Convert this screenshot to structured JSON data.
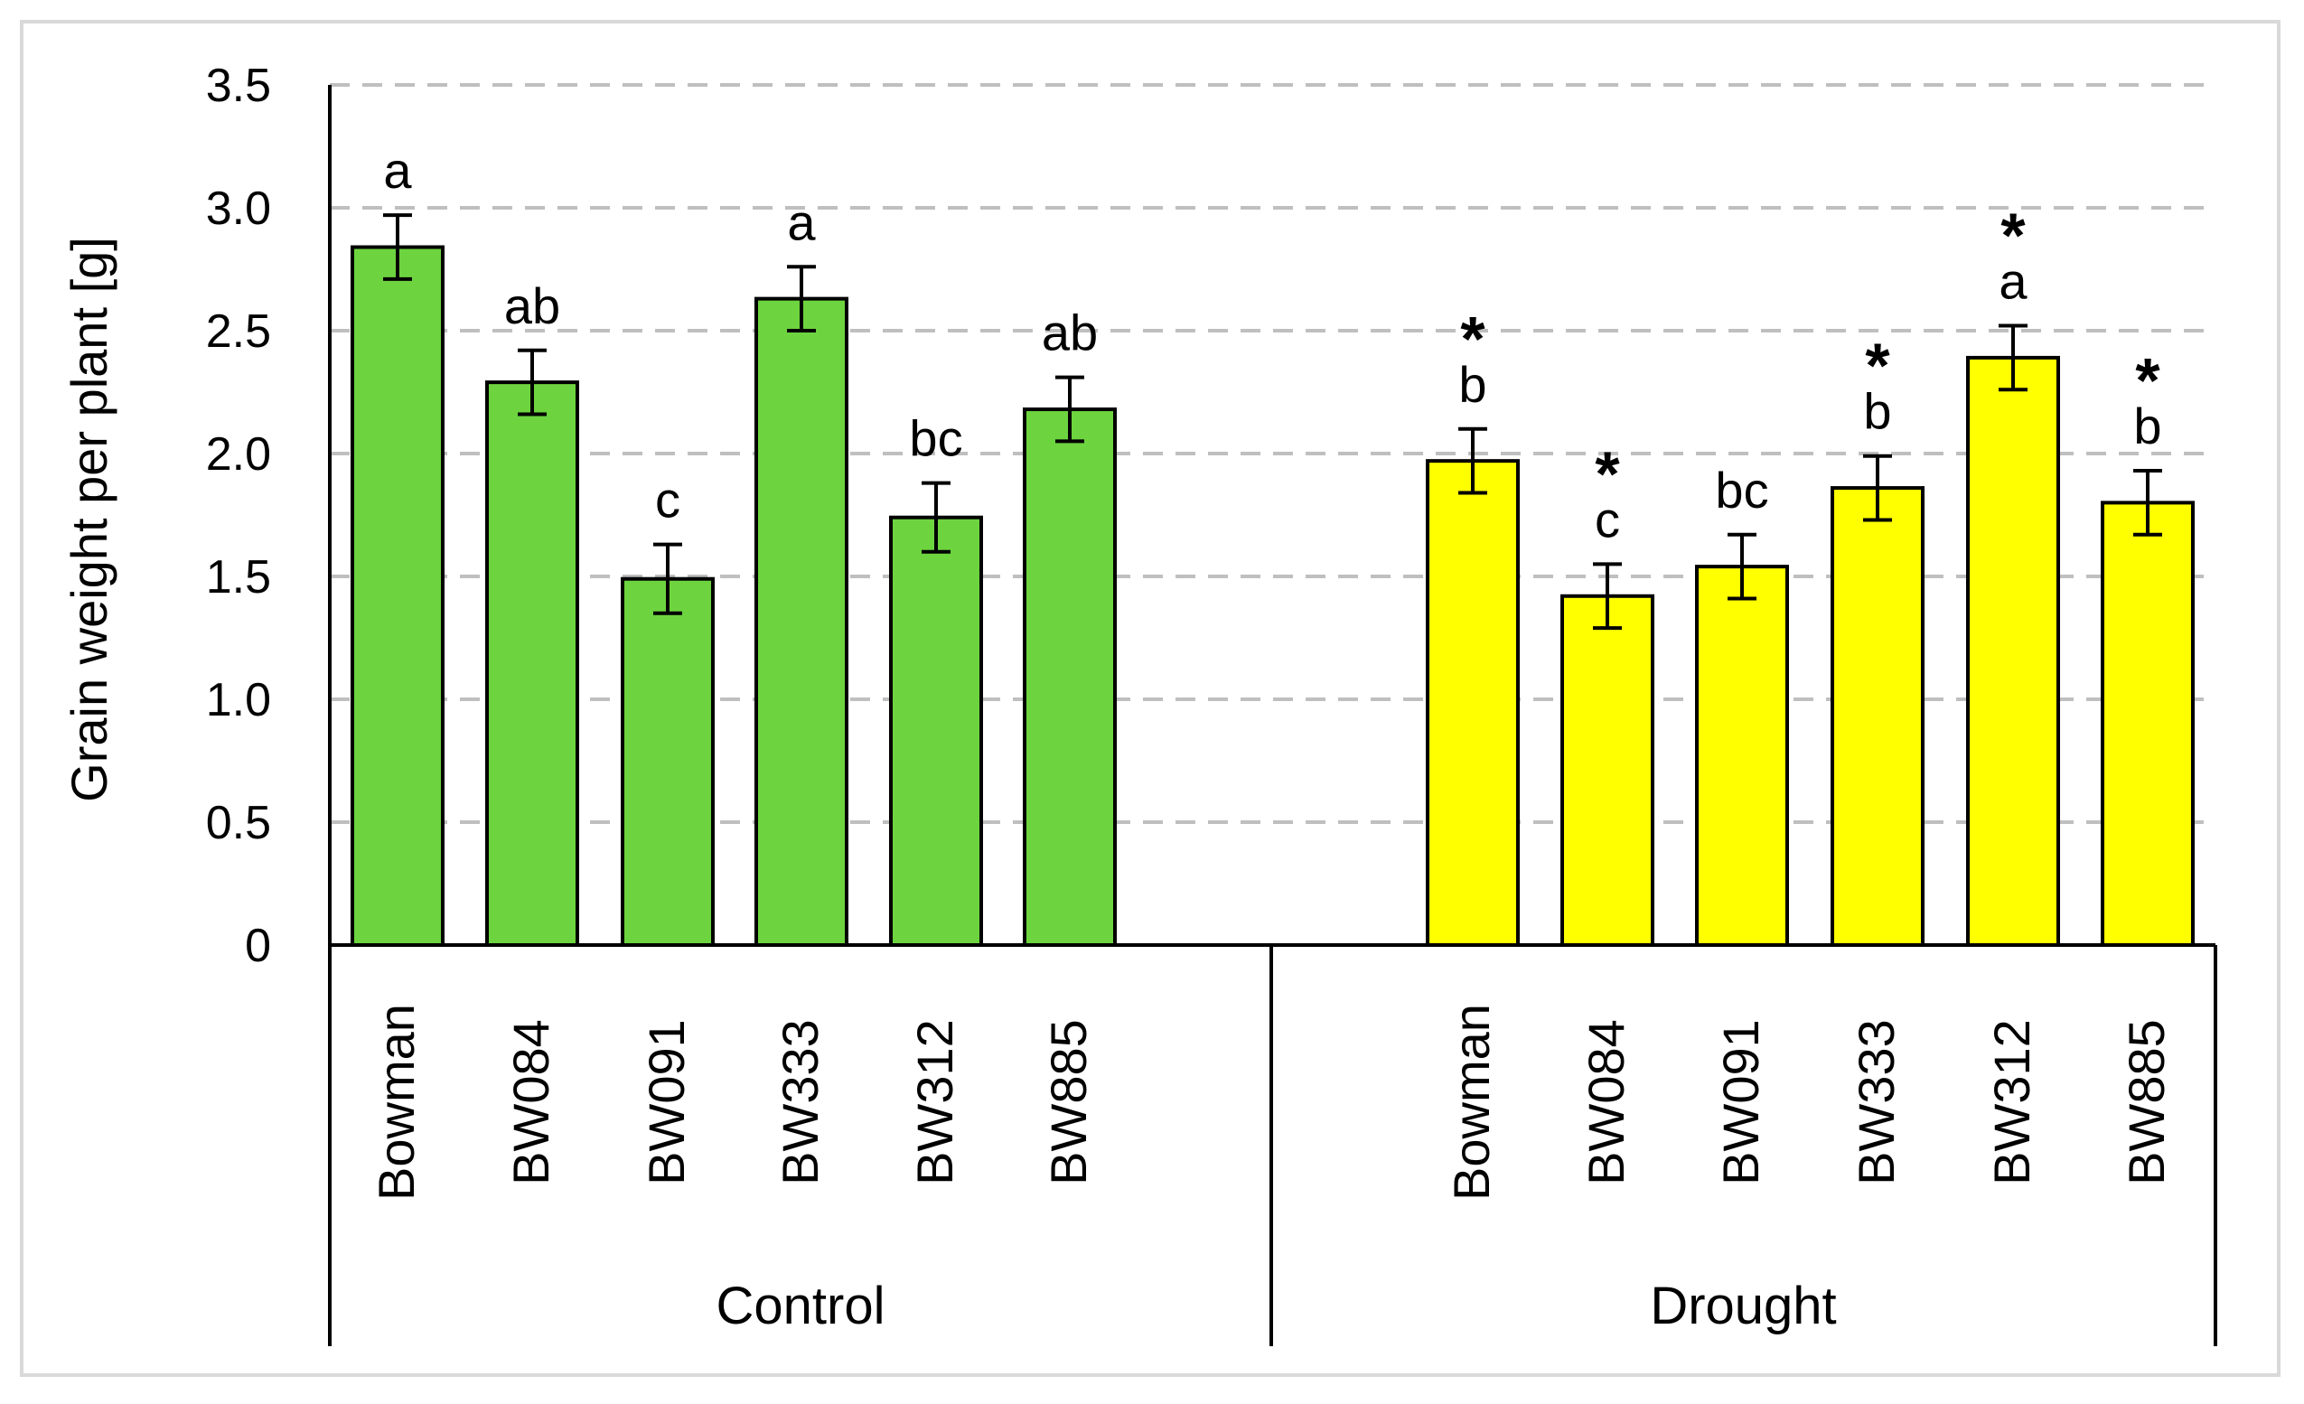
{
  "chart_data": {
    "type": "bar",
    "title": "",
    "ylabel": "Grain weight per plant  [g]",
    "xlabel": "",
    "ylim": [
      0,
      3.5
    ],
    "yticks": [
      0,
      0.5,
      1.0,
      1.5,
      2.0,
      2.5,
      3.0,
      3.5
    ],
    "ytick_labels": [
      "0",
      "0.5",
      "1.0",
      "1.5",
      "2.0",
      "2.5",
      "3.0",
      "3.5"
    ],
    "grid": "horizontal dashed",
    "groups": [
      {
        "name": "Control",
        "color": "#6dd43f",
        "categories": [
          "Bowman",
          "BW084",
          "BW091",
          "BW333",
          "BW312",
          "BW885"
        ],
        "values": [
          2.84,
          2.29,
          1.49,
          2.63,
          1.74,
          2.18
        ],
        "errors": [
          0.13,
          0.13,
          0.14,
          0.13,
          0.14,
          0.13
        ],
        "letters": [
          "a",
          "ab",
          "c",
          "a",
          "bc",
          "ab"
        ],
        "stars": [
          "",
          "",
          "",
          "",
          "",
          ""
        ]
      },
      {
        "name": "Drought",
        "color": "#ffff00",
        "categories": [
          "Bowman",
          "BW084",
          "BW091",
          "BW333",
          "BW312",
          "BW885"
        ],
        "values": [
          1.97,
          1.42,
          1.54,
          1.86,
          2.39,
          1.8
        ],
        "errors": [
          0.13,
          0.13,
          0.13,
          0.13,
          0.13,
          0.13
        ],
        "letters": [
          "b",
          "c",
          "bc",
          "b",
          "a",
          "b"
        ],
        "stars": [
          "*",
          "*",
          "",
          "*",
          "*",
          "*"
        ]
      }
    ]
  }
}
